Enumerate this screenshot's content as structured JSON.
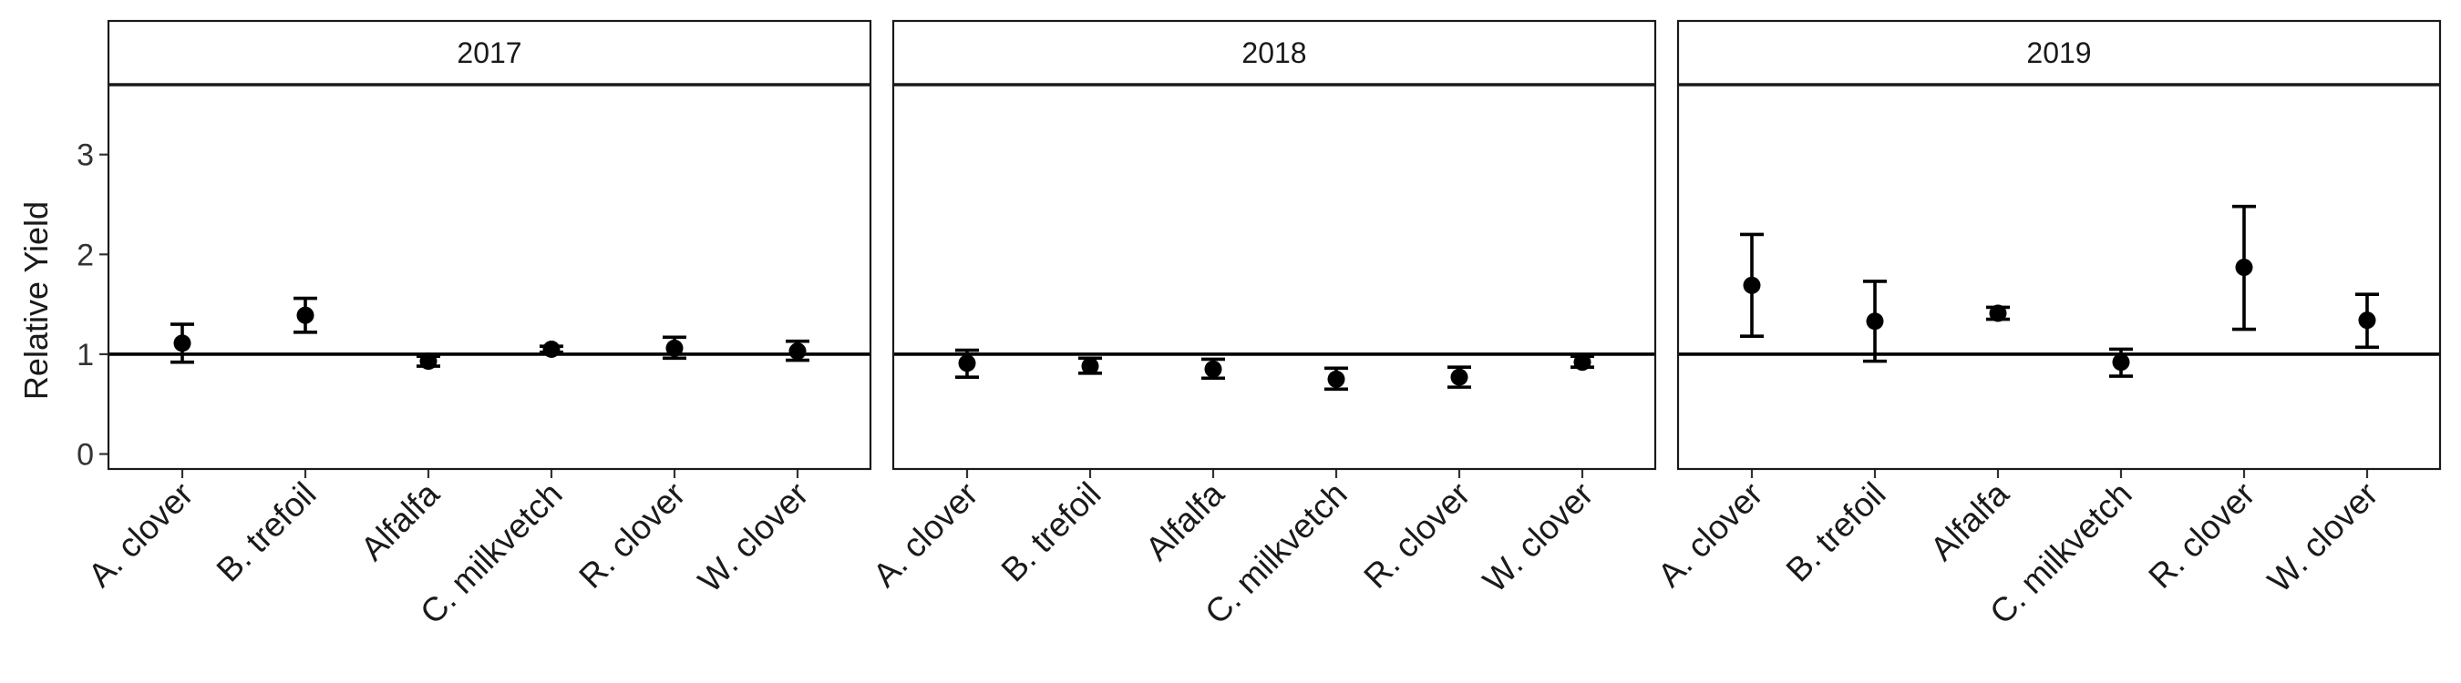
{
  "chart_data": {
    "type": "scatter",
    "ylabel": "Relative Yield",
    "xlabel": "",
    "ylim": [
      -0.15,
      3.7
    ],
    "yticks": [
      0,
      1,
      2,
      3
    ],
    "reference_line": 1,
    "categories": [
      "A. clover",
      "B. trefoil",
      "Alfalfa",
      "C. milkvetch",
      "R. clover",
      "W. clover"
    ],
    "panels": [
      {
        "label": "2017",
        "points": [
          {
            "category": "A. clover",
            "y": 1.11,
            "lower": 0.92,
            "upper": 1.3
          },
          {
            "category": "B. trefoil",
            "y": 1.39,
            "lower": 1.22,
            "upper": 1.56
          },
          {
            "category": "Alfalfa",
            "y": 0.93,
            "lower": 0.88,
            "upper": 0.98
          },
          {
            "category": "C. milkvetch",
            "y": 1.05,
            "lower": 1.02,
            "upper": 1.08
          },
          {
            "category": "R. clover",
            "y": 1.06,
            "lower": 0.96,
            "upper": 1.17
          },
          {
            "category": "W. clover",
            "y": 1.03,
            "lower": 0.94,
            "upper": 1.13
          }
        ]
      },
      {
        "label": "2018",
        "points": [
          {
            "category": "A. clover",
            "y": 0.91,
            "lower": 0.77,
            "upper": 1.04
          },
          {
            "category": "B. trefoil",
            "y": 0.88,
            "lower": 0.81,
            "upper": 0.96
          },
          {
            "category": "Alfalfa",
            "y": 0.85,
            "lower": 0.76,
            "upper": 0.95
          },
          {
            "category": "C. milkvetch",
            "y": 0.75,
            "lower": 0.65,
            "upper": 0.86
          },
          {
            "category": "R. clover",
            "y": 0.77,
            "lower": 0.67,
            "upper": 0.87
          },
          {
            "category": "W. clover",
            "y": 0.92,
            "lower": 0.87,
            "upper": 0.98
          }
        ]
      },
      {
        "label": "2019",
        "points": [
          {
            "category": "A. clover",
            "y": 1.69,
            "lower": 1.18,
            "upper": 2.2
          },
          {
            "category": "B. trefoil",
            "y": 1.33,
            "lower": 0.93,
            "upper": 1.73
          },
          {
            "category": "Alfalfa",
            "y": 1.41,
            "lower": 1.35,
            "upper": 1.47
          },
          {
            "category": "C. milkvetch",
            "y": 0.92,
            "lower": 0.78,
            "upper": 1.05
          },
          {
            "category": "R. clover",
            "y": 1.87,
            "lower": 1.25,
            "upper": 2.48
          },
          {
            "category": "W. clover",
            "y": 1.34,
            "lower": 1.07,
            "upper": 1.6
          }
        ]
      }
    ],
    "grid": false,
    "legend": "none"
  }
}
